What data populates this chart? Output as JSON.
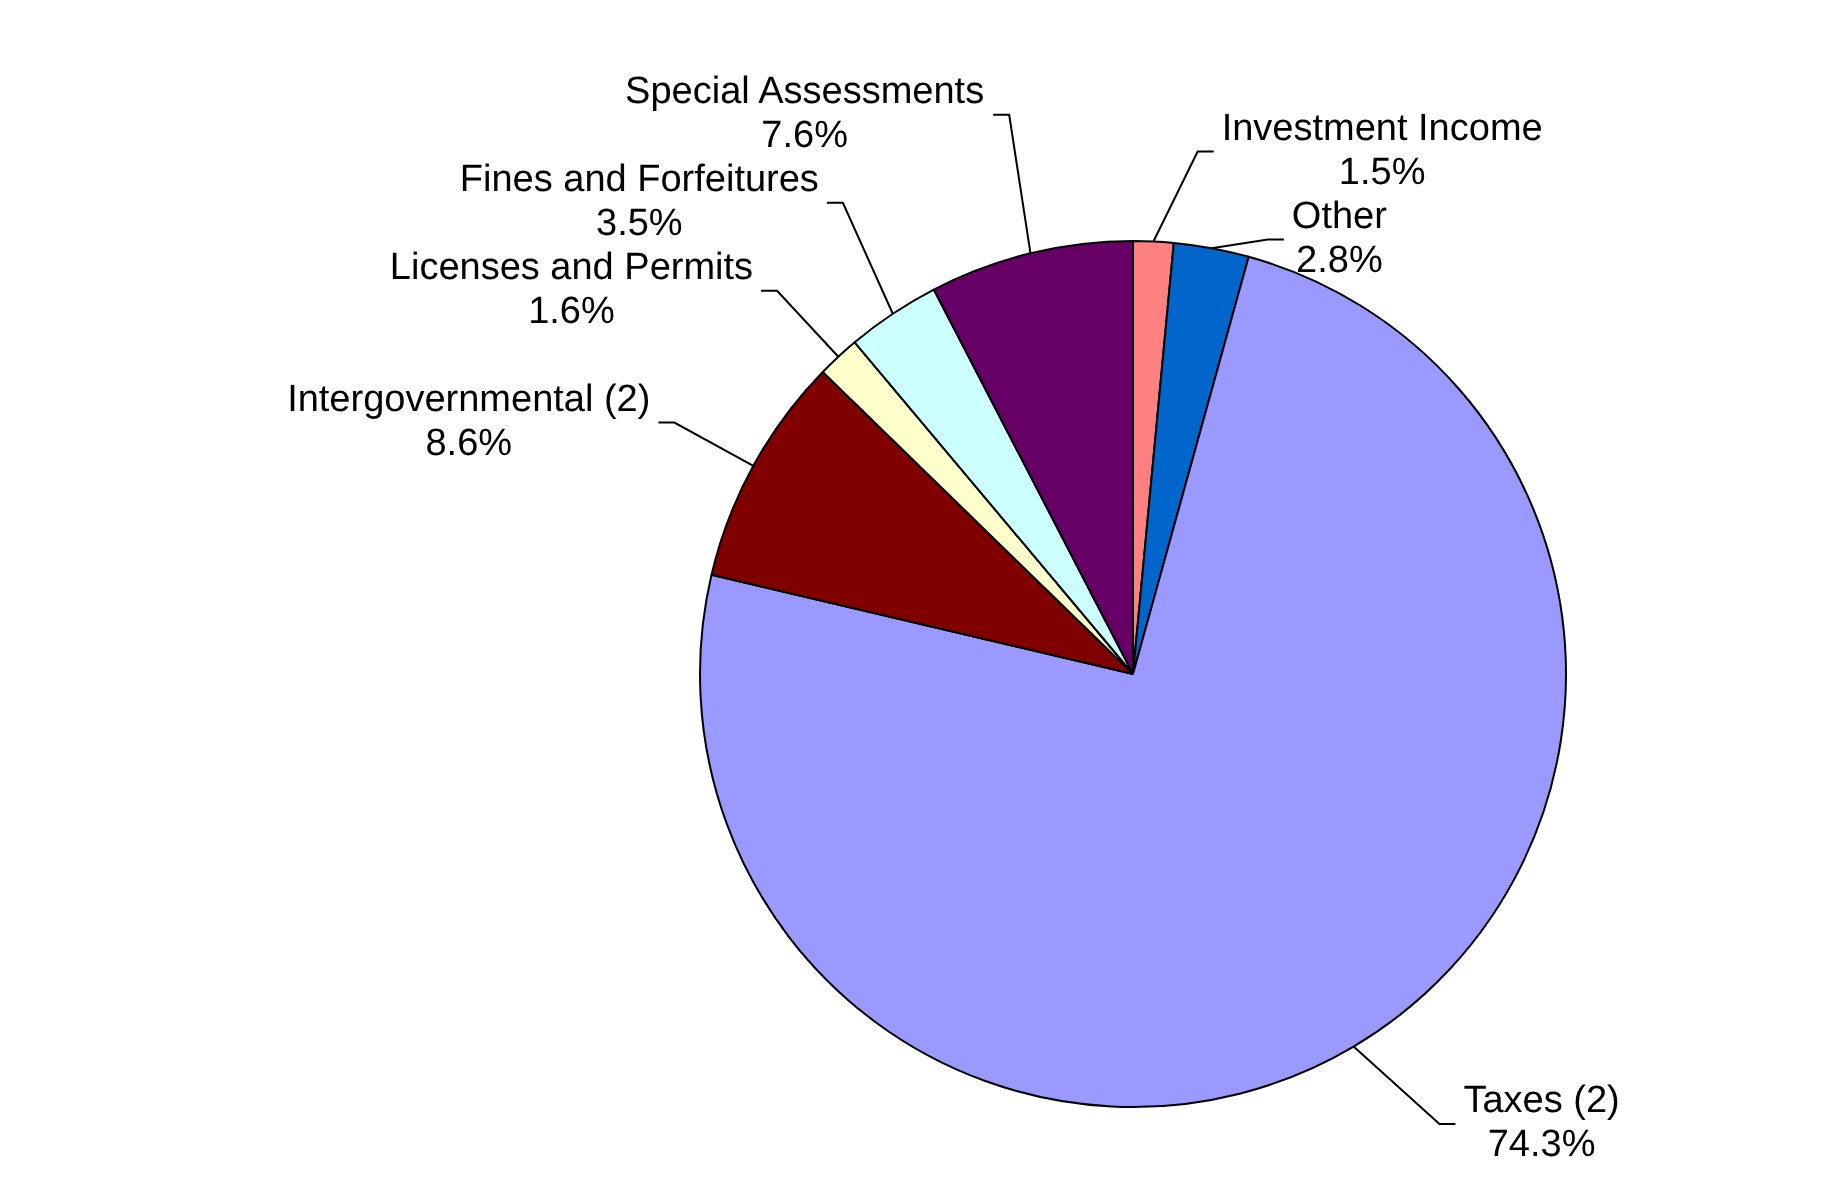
{
  "chart_data": {
    "type": "pie",
    "categories": [
      "Investment Income",
      "Other",
      "Taxes (2)",
      "Intergovernmental (2)",
      "Licenses and Permits",
      "Fines and Forfeitures",
      "Special Assessments"
    ],
    "values": [
      1.5,
      2.8,
      74.3,
      8.6,
      1.6,
      3.5,
      7.6
    ],
    "value_labels": [
      "1.5%",
      "2.8%",
      "74.3%",
      "8.6%",
      "1.6%",
      "3.5%",
      "7.6%"
    ],
    "colors": [
      "#ff8080",
      "#0066cc",
      "#9999ff",
      "#800000",
      "#ffffcc",
      "#ccffff",
      "#660066"
    ],
    "legend": false
  }
}
